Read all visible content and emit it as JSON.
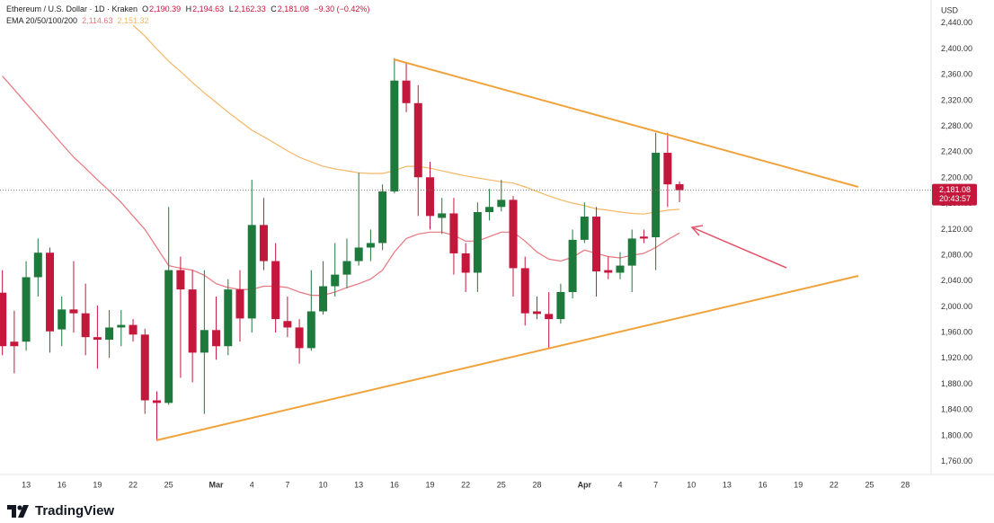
{
  "chart_data": {
    "type": "candlestick",
    "header": {
      "symbol": "Ethereum / U.S. Dollar · 1D · Kraken",
      "ohlc": [
        {
          "key": "O",
          "value": "2,190.39"
        },
        {
          "key": "H",
          "value": "2,194.63"
        },
        {
          "key": "L",
          "value": "2,162.33"
        },
        {
          "key": "C",
          "value": "2,181.08"
        }
      ],
      "change": "−9.30 (−0.42%)",
      "ema_label": "EMA 20/50/100/200",
      "ema_values": [
        "2,114.63",
        "2,151.32"
      ]
    },
    "currency": "USD",
    "brand": "TradingView",
    "last_price": {
      "label": "2,181.08",
      "countdown": "20:43:57"
    },
    "up_color": "#1d7a3c",
    "down_color": "#c4173c",
    "categories": [
      null,
      null,
      "13",
      null,
      null,
      "16",
      null,
      null,
      "19",
      null,
      null,
      "22",
      null,
      null,
      "25",
      null,
      null,
      null,
      "Mar",
      null,
      null,
      "4",
      null,
      null,
      "7",
      null,
      null,
      "10",
      null,
      null,
      "13",
      null,
      null,
      "16",
      null,
      null,
      "19",
      null,
      null,
      "22",
      null,
      null,
      "25",
      null,
      null,
      "28",
      null,
      null,
      null,
      "Apr",
      null,
      null,
      "4",
      null,
      null,
      "7",
      null,
      null,
      "10",
      null,
      null,
      "13",
      null,
      null,
      "16",
      null,
      null,
      "19",
      null,
      null,
      "22",
      null,
      null,
      "25",
      null,
      null,
      "28",
      null
    ],
    "open": [
      2022,
      1946,
      1946,
      2046,
      2084,
      1965,
      1996,
      1990,
      1953,
      1949,
      1968,
      1972,
      1957,
      1855,
      1851,
      2057,
      2027,
      1929,
      1964,
      1939,
      2027,
      1982,
      2127,
      2071,
      1978,
      1968,
      1936,
      1993,
      2032,
      2050,
      2071,
      2092,
      2099,
      2179,
      2351,
      2316,
      2201,
      2138,
      2145,
      2083,
      2053,
      2147,
      2155,
      2166,
      2060,
      1993,
      1989,
      1981,
      2023,
      2104,
      2140,
      2057,
      2053,
      2064,
      2109,
      2108,
      2239,
      2190.39,
      null,
      null,
      null,
      null,
      null,
      null,
      null,
      null,
      null,
      null,
      null,
      null,
      null,
      null,
      null,
      null,
      null,
      null,
      null,
      null
    ],
    "high": [
      2057,
      1994,
      2071,
      2106,
      2092,
      2016,
      2071,
      2036,
      2002,
      1995,
      1995,
      1981,
      1966,
      1869,
      2155,
      2078,
      2057,
      2057,
      2016,
      2043,
      2057,
      2197,
      2169,
      2099,
      2016,
      1981,
      2057,
      2071,
      2099,
      2106,
      2208,
      2120,
      2190,
      2386,
      2379,
      2344,
      2225,
      2169,
      2169,
      2099,
      2162,
      2183,
      2197,
      2172,
      2078,
      2016,
      2023,
      2036,
      2120,
      2162,
      2155,
      2078,
      2085,
      2120,
      2120,
      2270,
      2270,
      2194.63,
      null,
      null,
      null,
      null,
      null,
      null,
      null,
      null,
      null,
      null,
      null,
      null,
      null,
      null,
      null,
      null,
      null,
      null,
      null,
      null
    ],
    "low": [
      1925,
      1897,
      1932,
      2016,
      1929,
      1939,
      1960,
      1925,
      1904,
      1921,
      1939,
      1946,
      1834,
      1792,
      1848,
      1890,
      1883,
      1834,
      1918,
      1925,
      1946,
      1960,
      2057,
      1960,
      1953,
      1912,
      1932,
      1988,
      2016,
      2029,
      2064,
      2071,
      2088,
      2176,
      2302,
      2141,
      2120,
      2113,
      2050,
      2023,
      2023,
      2134,
      2148,
      2016,
      1971,
      1981,
      1935,
      1974,
      2013,
      2099,
      2016,
      2043,
      2043,
      2023,
      2099,
      2057,
      2155,
      2162.33,
      null,
      null,
      null,
      null,
      null,
      null,
      null,
      null,
      null,
      null,
      null,
      null,
      null,
      null,
      null,
      null,
      null,
      null,
      null,
      null
    ],
    "close": [
      1939,
      1939,
      2046,
      2084,
      1962,
      1996,
      1990,
      1953,
      1949,
      1968,
      1972,
      1957,
      1855,
      1851,
      2057,
      2027,
      1929,
      1964,
      1939,
      2027,
      1982,
      2127,
      2071,
      1981,
      1968,
      1936,
      1993,
      2032,
      2050,
      2071,
      2092,
      2099,
      2179,
      2351,
      2316,
      2201,
      2141,
      2145,
      2083,
      2053,
      2147,
      2155,
      2166,
      2060,
      1990,
      1989,
      1981,
      2023,
      2104,
      2140,
      2055,
      2053,
      2064,
      2106,
      2106,
      2239,
      2190,
      2181.08,
      null,
      null,
      null,
      null,
      null,
      null,
      null,
      null,
      null,
      null,
      null,
      null,
      null,
      null,
      null,
      null,
      null,
      null,
      null,
      null
    ],
    "series": [
      {
        "color": "#e8777f",
        "values": [
          2358,
          2337,
          2316,
          2295,
          2274,
          2253,
          2232,
          2215,
          2197,
          2180,
          2162,
          2141,
          2120,
          2092,
          2064,
          2060,
          2057,
          2049,
          2036,
          2030,
          2027,
          2027,
          2032,
          2032,
          2030,
          2023,
          2018,
          2018,
          2023,
          2030,
          2036,
          2043,
          2057,
          2085,
          2106,
          2113,
          2116,
          2116,
          2111,
          2102,
          2102,
          2109,
          2116,
          2116,
          2102,
          2085,
          2074,
          2071,
          2077,
          2088,
          2083,
          2078,
          2076,
          2080,
          2083,
          2092,
          2104,
          2114.63,
          null,
          null,
          null,
          null,
          null,
          null,
          null,
          null,
          null,
          null,
          null,
          null,
          null,
          null,
          null,
          null,
          null,
          null,
          null,
          null
        ]
      },
      {
        "color": "#f3b766",
        "values": [
          null,
          null,
          null,
          null,
          null,
          null,
          null,
          null,
          null,
          null,
          null,
          2437,
          2420,
          2400,
          2381,
          2365,
          2348,
          2332,
          2317,
          2302,
          2288,
          2274,
          2264,
          2253,
          2242,
          2232,
          2225,
          2218,
          2214,
          2211,
          2208,
          2207,
          2207,
          2211,
          2218,
          2218,
          2215,
          2211,
          2207,
          2203,
          2200,
          2197,
          2194,
          2192,
          2186,
          2179,
          2172,
          2166,
          2161,
          2157,
          2152,
          2150,
          2147,
          2145,
          2144,
          2147,
          2150,
          2151.32,
          null,
          null,
          null,
          null,
          null,
          null,
          null,
          null,
          null,
          null,
          null,
          null,
          null,
          null,
          null,
          null,
          null,
          null,
          null,
          null
        ]
      }
    ],
    "ylim": [
      1740,
      2476
    ],
    "yticks": [
      {
        "value": 1760,
        "label": "1,760.00"
      },
      {
        "value": 1800,
        "label": "1,800.00"
      },
      {
        "value": 1840,
        "label": "1,840.00"
      },
      {
        "value": 1880,
        "label": "1,880.00"
      },
      {
        "value": 1920,
        "label": "1,920.00"
      },
      {
        "value": 1960,
        "label": "1,960.00"
      },
      {
        "value": 2000,
        "label": "2,000.00"
      },
      {
        "value": 2040,
        "label": "2,040.00"
      },
      {
        "value": 2080,
        "label": "2,080.00"
      },
      {
        "value": 2120,
        "label": "2,120.00"
      },
      {
        "value": 2160,
        "label": "2,160.00"
      },
      {
        "value": 2200,
        "label": "2,200.00"
      },
      {
        "value": 2240,
        "label": "2,240.00"
      },
      {
        "value": 2280,
        "label": "2,280.00"
      },
      {
        "value": 2320,
        "label": "2,320.00"
      },
      {
        "value": 2360,
        "label": "2,360.00"
      },
      {
        "value": 2400,
        "label": "2,400.00"
      },
      {
        "value": 2440,
        "label": "2,440.00"
      }
    ]
  }
}
